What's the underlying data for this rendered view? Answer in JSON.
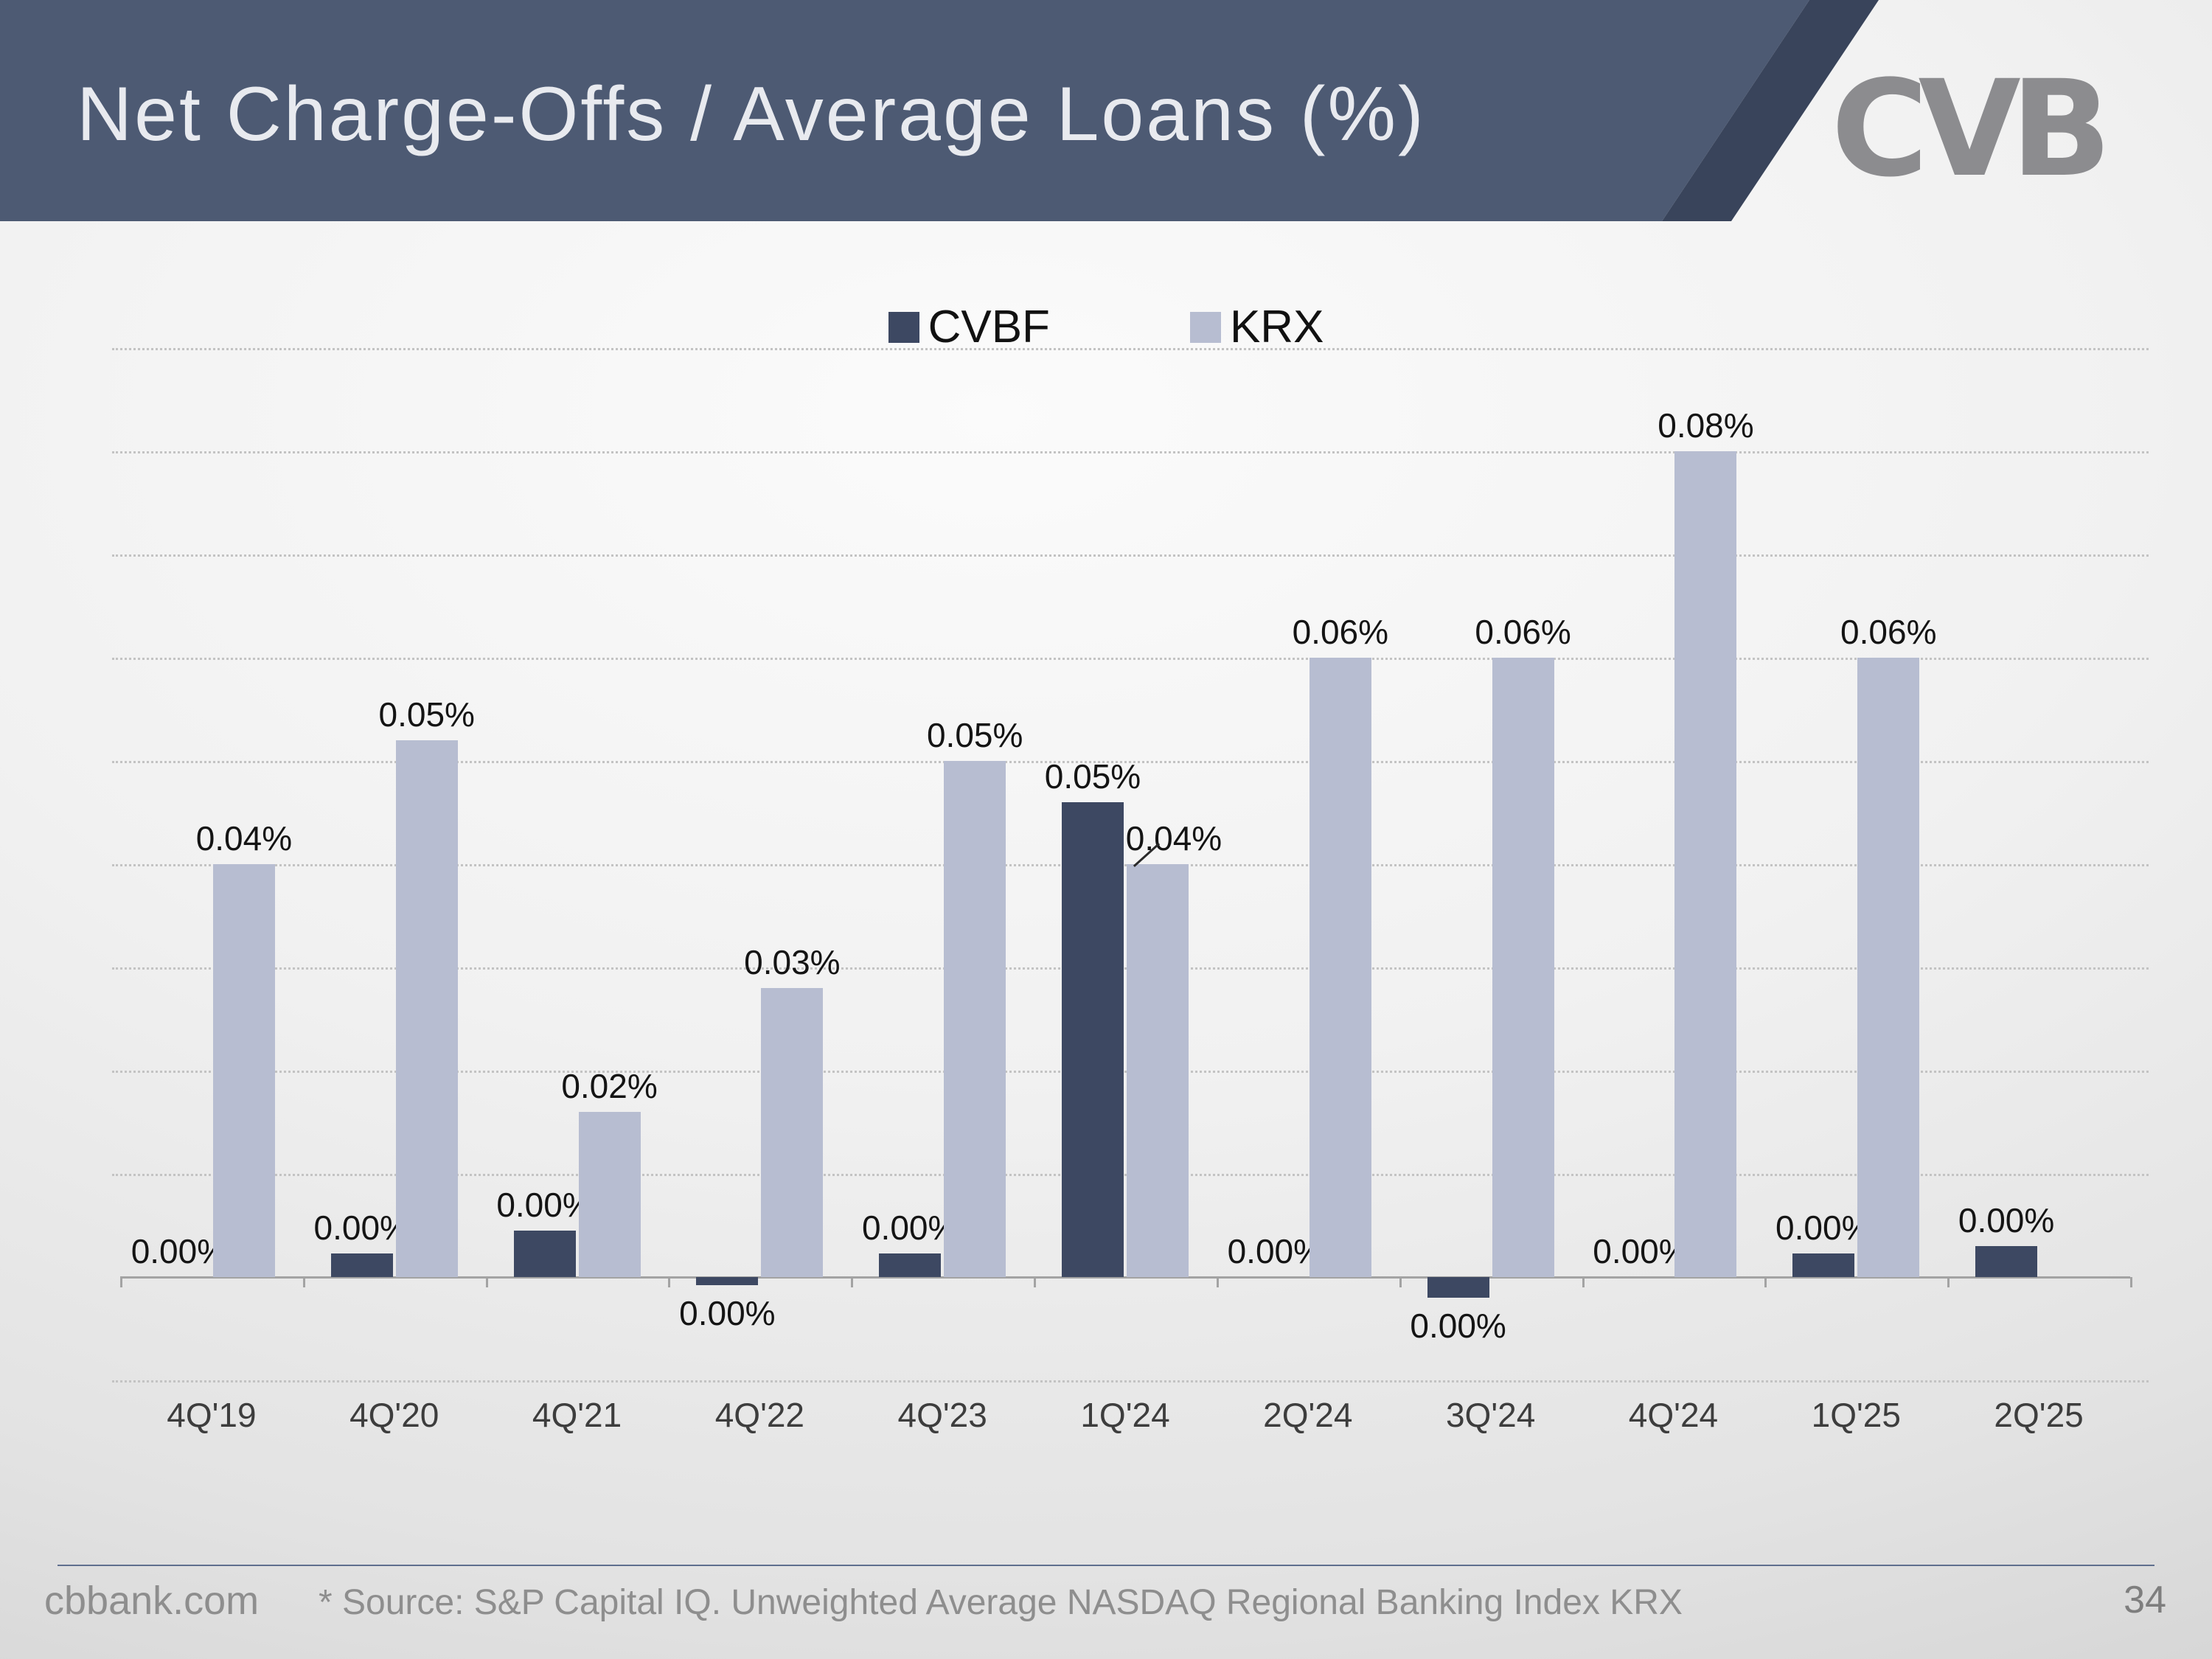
{
  "header": {
    "title": "Net Charge-Offs / Average Loans (%)",
    "logo_text": "CVB"
  },
  "legend": [
    {
      "label": "CVBF",
      "color": "#3d4862"
    },
    {
      "label": "KRX",
      "color": "#b7bdd1"
    }
  ],
  "chart_data": {
    "type": "bar",
    "title": "Net Charge-Offs / Average Loans (%)",
    "categories": [
      "4Q'19",
      "4Q'20",
      "4Q'21",
      "4Q'22",
      "4Q'23",
      "1Q'24",
      "2Q'24",
      "3Q'24",
      "4Q'24",
      "1Q'25",
      "2Q'25"
    ],
    "series": [
      {
        "name": "CVBF",
        "color": "#3d4862",
        "values": [
          0,
          0.0023,
          0.0045,
          -0.0008,
          0.0023,
          0.046,
          0,
          -0.002,
          0,
          0.0023,
          0.003
        ],
        "labels": [
          "0.00%",
          "0.00%",
          "0.00%",
          "0.00%",
          "0.00%",
          "0.05%",
          "0.00%",
          "0.00%",
          "0.00%",
          "0.00%",
          "0.00%"
        ]
      },
      {
        "name": "KRX",
        "color": "#b7bdd1",
        "values": [
          0.04,
          0.052,
          0.016,
          0.028,
          0.05,
          0.04,
          0.06,
          0.06,
          0.08,
          0.06,
          null
        ],
        "labels": [
          "0.04%",
          "0.05%",
          "0.02%",
          "0.03%",
          "0.05%",
          "0.04%",
          "0.06%",
          "0.06%",
          "0.08%",
          "0.06%",
          ""
        ],
        "label_dx": [
          0,
          0,
          0,
          0,
          0,
          22,
          0,
          0,
          0,
          0,
          0
        ],
        "leader": [
          false,
          false,
          false,
          false,
          false,
          true,
          false,
          false,
          false,
          false,
          false
        ]
      }
    ],
    "ylim": [
      -0.01,
      0.09
    ],
    "grid_step": 0.01,
    "grid": "dotted horizontal",
    "legend_position": "top-center",
    "xlabel": "",
    "ylabel": ""
  },
  "footer": {
    "site": "cbbank.com",
    "source": "* Source: S&P Capital IQ. Unweighted Average NASDAQ Regional Banking Index KRX",
    "page": "34"
  }
}
